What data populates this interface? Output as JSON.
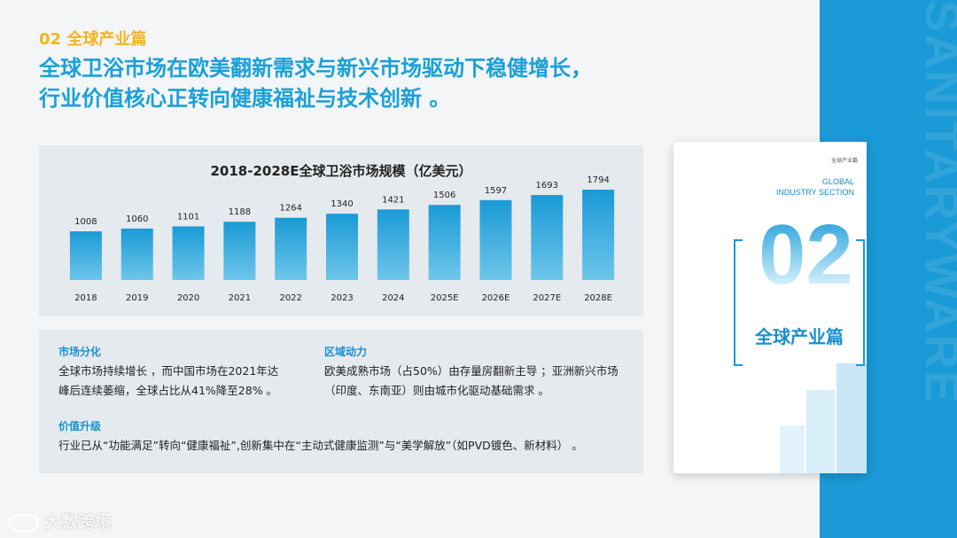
{
  "section_label": "02 全球产业篇",
  "headline": {
    "line1": "全球卫浴市场在欧美翻新需求与新兴市场驱动下稳健增长，",
    "line2": "行业价值核心正转向健康福祉与技术创新 。"
  },
  "chart_data": {
    "type": "bar",
    "title": "2018-2028E全球卫浴市场规模（亿美元）",
    "categories": [
      "2018",
      "2019",
      "2020",
      "2021",
      "2022",
      "2023",
      "2024",
      "2025E",
      "2026E",
      "2027E",
      "2028E"
    ],
    "values": [
      1008,
      1060,
      1101,
      1188,
      1264,
      1340,
      1421,
      1506,
      1597,
      1693,
      1794
    ],
    "xlabel": "",
    "ylabel": "",
    "grid": false,
    "colors": {
      "bar_top": "#1a9ad6",
      "bar_bottom": "#6ec6ea"
    }
  },
  "blocks": {
    "market": {
      "title": "市场分化",
      "line1": "全球市场持续增长 ，而中国市场在2021年达",
      "line2": "峰后连续萎缩，全球占比从41%降至28% 。"
    },
    "region": {
      "title": "区域动力",
      "line1": "欧美成熟市场（占50%）由存量房翻新主导 ；亚洲新兴市场",
      "line2": "（印度、东南亚）则由城市化驱动基础需求 。"
    },
    "value": {
      "title": "价值升级",
      "line1": "行业已从“功能满足”转向“健康福祉”,创新集中在“主动式健康监测”与“美学解放”（如PVD镀色、新材料） 。"
    }
  },
  "cover": {
    "small_text": "全球产业篇",
    "en_line1": "GLOBAL",
    "en_line2": "INDUSTRY SECTION",
    "number": "02",
    "title": "全球产业篇"
  },
  "vertical_text": "SANITARYWARE",
  "watermark": "大数跨境",
  "colors": {
    "accent_blue": "#1a9ad6",
    "accent_yellow": "#f2b51b",
    "panel_bg": "#e5eaee"
  }
}
